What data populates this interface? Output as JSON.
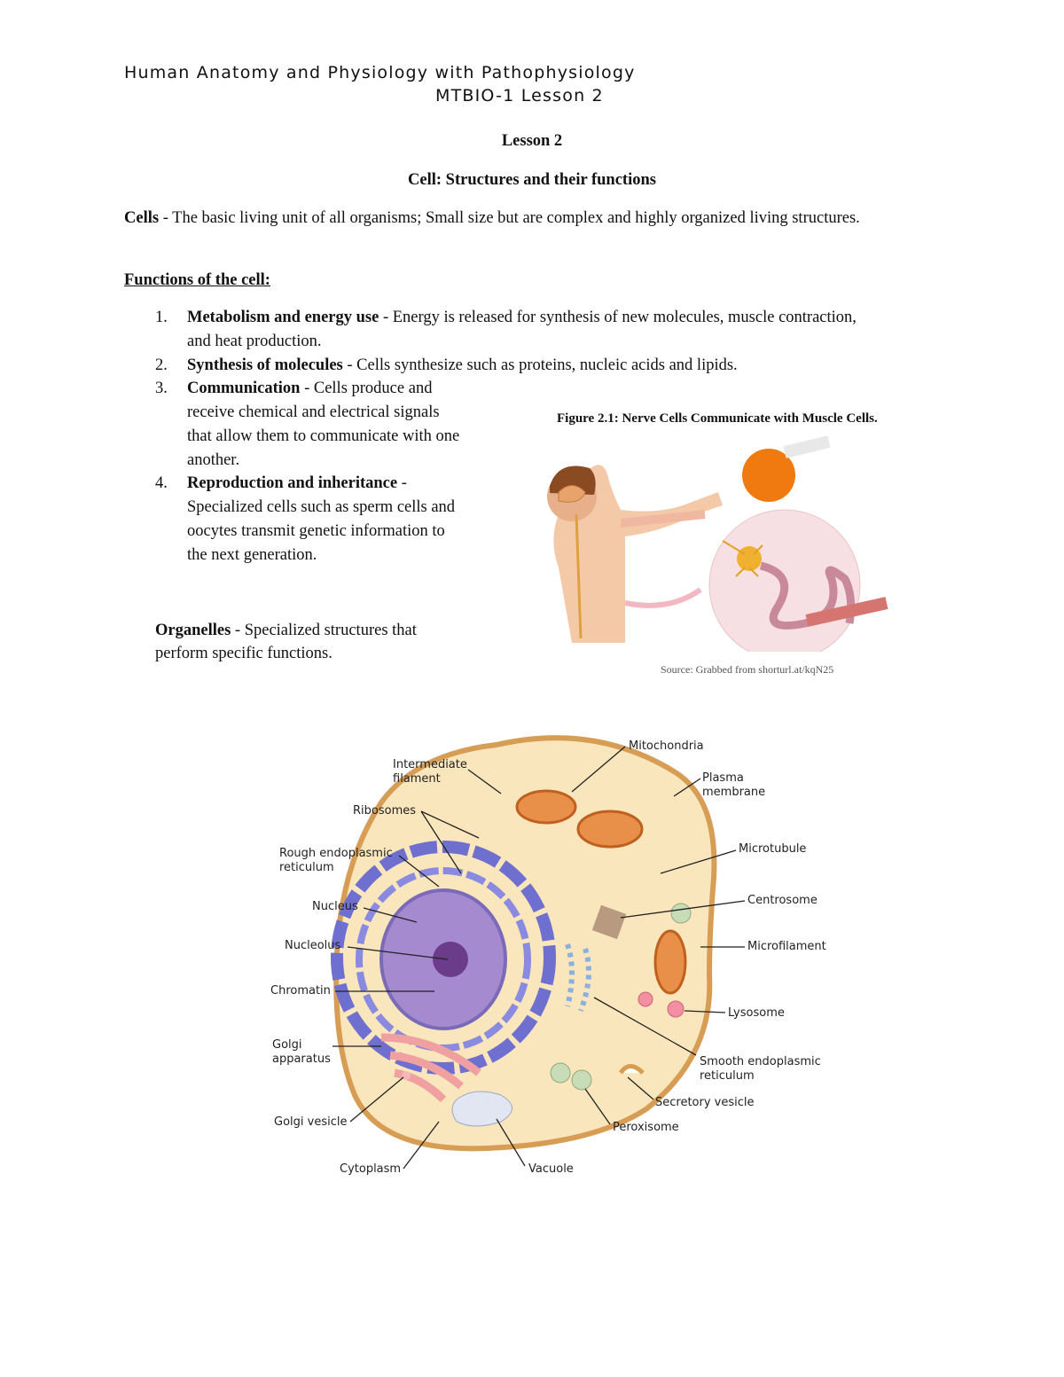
{
  "header": {
    "course": "Human Anatomy and Physiology with Pathophysiology",
    "code": "MTBIO-1 Lesson 2"
  },
  "lesson": "Lesson 2",
  "title": "Cell: Structures and their functions",
  "cells": {
    "term": "Cells",
    "definition": "- The basic living unit of all organisms; Small size but are complex and highly organized living structures."
  },
  "functions": {
    "heading": "Functions of the cell:",
    "items": [
      {
        "number": "1.",
        "term": "Metabolism and energy use",
        "text": "- Energy is released for synthesis of new molecules, muscle contraction, and heat production."
      },
      {
        "number": "2.",
        "term": "Synthesis of molecules",
        "text": "- Cells synthesize such as proteins, nucleic acids and lipids."
      },
      {
        "number": "3.",
        "term": "Communication",
        "text": "- Cells produce and receive chemical and electrical signals that allow them to communicate with one another."
      },
      {
        "number": "4.",
        "term": "Reproduction and inheritance",
        "text": "- Specialized cells such as sperm cells and oocytes transmit genetic information to the next generation."
      }
    ]
  },
  "organelles": {
    "term": "Organelles",
    "definition": "- Specialized structures that perform specific functions."
  },
  "figure": {
    "caption": "Figure 2.1: Nerve Cells Communicate with Muscle Cells.",
    "source": "Source: Grabbed from shorturl.at/kqN25"
  },
  "cell_diagram": {
    "labels": [
      [
        "Mitochondria"
      ],
      [
        "Intermediate",
        "filament"
      ],
      [
        "Plasma",
        "membrane"
      ],
      [
        "Ribosomes"
      ],
      [
        "Microtubule"
      ],
      [
        "Rough endoplasmic",
        "reticulum"
      ],
      [
        "Centrosome"
      ],
      [
        "Nucleus"
      ],
      [
        "Microfilament"
      ],
      [
        "Nucleolus"
      ],
      [
        "Chromatin"
      ],
      [
        "Lysosome"
      ],
      [
        "Golgi",
        "apparatus"
      ],
      [
        "Smooth endoplasmic",
        "reticulum"
      ],
      [
        "Secretory vesicle"
      ],
      [
        "Golgi vesicle"
      ],
      [
        "Peroxisome"
      ],
      [
        "Cytoplasm"
      ],
      [
        "Vacuole"
      ]
    ]
  }
}
